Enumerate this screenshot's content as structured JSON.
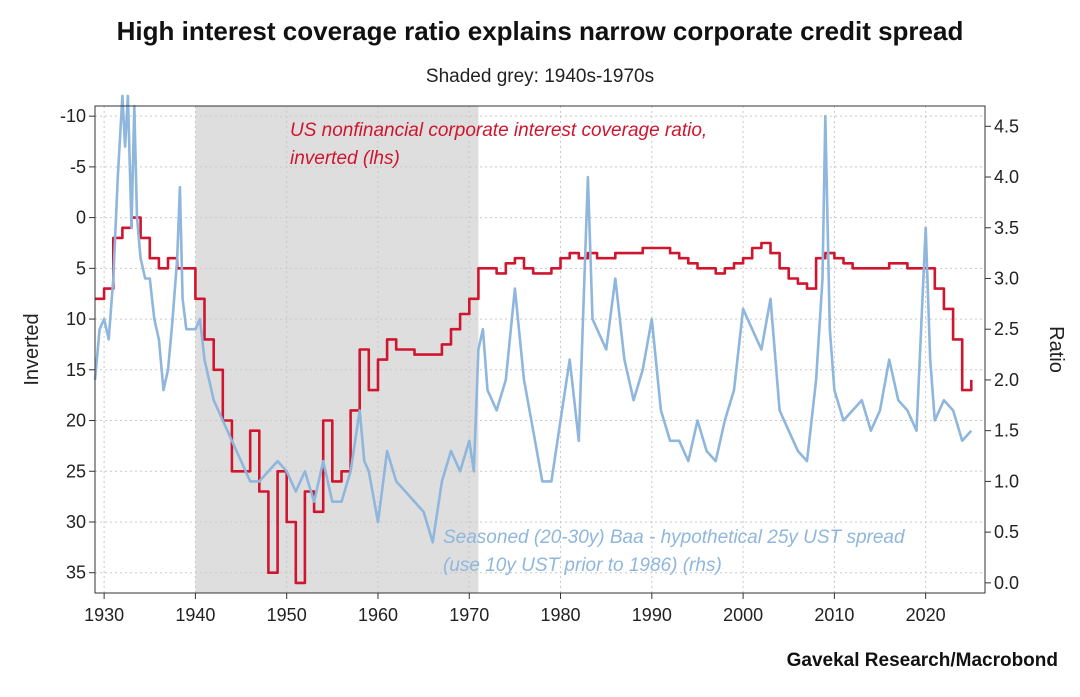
{
  "chart_data": {
    "type": "line",
    "title": "High interest coverage ratio explains narrow corporate credit spread",
    "subtitle": "Shaded grey: 1940s-1970s",
    "source": "Gavekal Research/Macrobond",
    "xlim": [
      1929,
      2026.5
    ],
    "x_ticks": [
      "1930",
      "1940",
      "1950",
      "1960",
      "1970",
      "1980",
      "1990",
      "2000",
      "2010",
      "2020"
    ],
    "shaded_region": [
      1940,
      1971
    ],
    "left_axis": {
      "label": "Inverted",
      "inverted": true,
      "range": [
        -11,
        37
      ],
      "ticks": [
        "-10",
        "-5",
        "0",
        "5",
        "10",
        "15",
        "20",
        "25",
        "30",
        "35"
      ]
    },
    "right_axis": {
      "label": "Ratio",
      "range": [
        -0.1,
        4.7
      ],
      "ticks": [
        "0.0",
        "0.5",
        "1.0",
        "1.5",
        "2.0",
        "2.5",
        "3.0",
        "3.5",
        "4.0",
        "4.5"
      ]
    },
    "grid": true,
    "series": [
      {
        "name": "US nonfinancial corporate interest coverage ratio, inverted (lhs)",
        "label_lines": [
          "US nonfinancial corporate interest coverage ratio,",
          "inverted (lhs)"
        ],
        "axis": "left",
        "color": "#d0152e",
        "step": true,
        "points": [
          [
            1929,
            8
          ],
          [
            1930,
            7
          ],
          [
            1931,
            2
          ],
          [
            1932,
            1
          ],
          [
            1933,
            0
          ],
          [
            1934,
            2
          ],
          [
            1935,
            4
          ],
          [
            1936,
            5
          ],
          [
            1937,
            4
          ],
          [
            1938,
            5
          ],
          [
            1939,
            5
          ],
          [
            1940,
            8
          ],
          [
            1941,
            12
          ],
          [
            1942,
            15
          ],
          [
            1943,
            20
          ],
          [
            1944,
            25
          ],
          [
            1945,
            25
          ],
          [
            1946,
            21
          ],
          [
            1947,
            27
          ],
          [
            1948,
            35
          ],
          [
            1949,
            25
          ],
          [
            1950,
            30
          ],
          [
            1951,
            36
          ],
          [
            1952,
            27
          ],
          [
            1953,
            29
          ],
          [
            1954,
            20
          ],
          [
            1955,
            26
          ],
          [
            1956,
            25
          ],
          [
            1957,
            19
          ],
          [
            1958,
            13
          ],
          [
            1959,
            17
          ],
          [
            1960,
            14
          ],
          [
            1961,
            12
          ],
          [
            1962,
            13
          ],
          [
            1963,
            13
          ],
          [
            1964,
            13.5
          ],
          [
            1965,
            13.5
          ],
          [
            1966,
            13.5
          ],
          [
            1967,
            12.5
          ],
          [
            1968,
            11
          ],
          [
            1969,
            9.5
          ],
          [
            1970,
            8
          ],
          [
            1971,
            5
          ],
          [
            1972,
            5
          ],
          [
            1973,
            5.5
          ],
          [
            1974,
            4.5
          ],
          [
            1975,
            4
          ],
          [
            1976,
            5
          ],
          [
            1977,
            5.5
          ],
          [
            1978,
            5.5
          ],
          [
            1979,
            5
          ],
          [
            1980,
            4
          ],
          [
            1981,
            3.5
          ],
          [
            1982,
            4
          ],
          [
            1983,
            3.5
          ],
          [
            1984,
            4
          ],
          [
            1985,
            4
          ],
          [
            1986,
            3.5
          ],
          [
            1987,
            3.5
          ],
          [
            1988,
            3.5
          ],
          [
            1989,
            3
          ],
          [
            1990,
            3
          ],
          [
            1991,
            3
          ],
          [
            1992,
            3.5
          ],
          [
            1993,
            4
          ],
          [
            1994,
            4.5
          ],
          [
            1995,
            5
          ],
          [
            1996,
            5
          ],
          [
            1997,
            5.5
          ],
          [
            1998,
            5
          ],
          [
            1999,
            4.5
          ],
          [
            2000,
            4
          ],
          [
            2001,
            3
          ],
          [
            2002,
            2.5
          ],
          [
            2003,
            3.5
          ],
          [
            2004,
            5
          ],
          [
            2005,
            6
          ],
          [
            2006,
            6.5
          ],
          [
            2007,
            7
          ],
          [
            2008,
            4
          ],
          [
            2009,
            3.5
          ],
          [
            2010,
            4
          ],
          [
            2011,
            4.5
          ],
          [
            2012,
            5
          ],
          [
            2013,
            5
          ],
          [
            2014,
            5
          ],
          [
            2015,
            5
          ],
          [
            2016,
            4.5
          ],
          [
            2017,
            4.5
          ],
          [
            2018,
            5
          ],
          [
            2019,
            5
          ],
          [
            2020,
            5
          ],
          [
            2021,
            7
          ],
          [
            2022,
            9
          ],
          [
            2023,
            12
          ],
          [
            2024,
            17
          ],
          [
            2025,
            16
          ]
        ]
      },
      {
        "name": "Seasoned (20-30y) Baa - hypothetical 25y UST spread (use 10y UST prior to 1986) (rhs)",
        "label_lines": [
          "Seasoned (20-30y) Baa - hypothetical 25y UST spread",
          "(use 10y UST prior to 1986) (rhs)"
        ],
        "axis": "right",
        "color": "#8fb6dc",
        "step": false,
        "points": [
          [
            1929,
            2.0
          ],
          [
            1929.5,
            2.5
          ],
          [
            1930,
            2.6
          ],
          [
            1930.5,
            2.4
          ],
          [
            1931,
            3.0
          ],
          [
            1931.5,
            4.0
          ],
          [
            1932,
            4.8
          ],
          [
            1932.3,
            4.3
          ],
          [
            1932.6,
            4.8
          ],
          [
            1933,
            3.5
          ],
          [
            1933.3,
            4.7
          ],
          [
            1933.6,
            3.6
          ],
          [
            1934,
            3.2
          ],
          [
            1934.5,
            3.0
          ],
          [
            1935,
            3.0
          ],
          [
            1935.5,
            2.6
          ],
          [
            1936,
            2.4
          ],
          [
            1936.5,
            1.9
          ],
          [
            1937,
            2.1
          ],
          [
            1937.5,
            2.6
          ],
          [
            1938,
            3.2
          ],
          [
            1938.3,
            3.9
          ],
          [
            1938.6,
            2.8
          ],
          [
            1939,
            2.5
          ],
          [
            1940,
            2.5
          ],
          [
            1940.5,
            2.6
          ],
          [
            1941,
            2.2
          ],
          [
            1942,
            1.8
          ],
          [
            1943,
            1.6
          ],
          [
            1944,
            1.4
          ],
          [
            1945,
            1.2
          ],
          [
            1946,
            1.0
          ],
          [
            1947,
            1.0
          ],
          [
            1948,
            1.1
          ],
          [
            1949,
            1.2
          ],
          [
            1950,
            1.1
          ],
          [
            1951,
            0.9
          ],
          [
            1952,
            1.1
          ],
          [
            1953,
            0.8
          ],
          [
            1954,
            1.2
          ],
          [
            1955,
            0.8
          ],
          [
            1956,
            0.8
          ],
          [
            1957,
            1.1
          ],
          [
            1958,
            1.7
          ],
          [
            1958.5,
            1.2
          ],
          [
            1959,
            1.1
          ],
          [
            1960,
            0.6
          ],
          [
            1961,
            1.3
          ],
          [
            1962,
            1.0
          ],
          [
            1963,
            0.9
          ],
          [
            1964,
            0.8
          ],
          [
            1965,
            0.7
          ],
          [
            1966,
            0.4
          ],
          [
            1967,
            1.0
          ],
          [
            1968,
            1.3
          ],
          [
            1969,
            1.1
          ],
          [
            1970,
            1.4
          ],
          [
            1970.5,
            1.1
          ],
          [
            1971,
            2.3
          ],
          [
            1971.5,
            2.5
          ],
          [
            1972,
            1.9
          ],
          [
            1973,
            1.7
          ],
          [
            1974,
            2.0
          ],
          [
            1975,
            2.9
          ],
          [
            1976,
            2.0
          ],
          [
            1977,
            1.5
          ],
          [
            1978,
            1.0
          ],
          [
            1979,
            1.0
          ],
          [
            1980,
            1.6
          ],
          [
            1981,
            2.2
          ],
          [
            1982,
            1.4
          ],
          [
            1983,
            4.0
          ],
          [
            1983.5,
            2.6
          ],
          [
            1984,
            2.5
          ],
          [
            1985,
            2.3
          ],
          [
            1986,
            3.0
          ],
          [
            1987,
            2.2
          ],
          [
            1988,
            1.8
          ],
          [
            1989,
            2.1
          ],
          [
            1990,
            2.6
          ],
          [
            1991,
            1.7
          ],
          [
            1992,
            1.4
          ],
          [
            1993,
            1.4
          ],
          [
            1994,
            1.2
          ],
          [
            1995,
            1.6
          ],
          [
            1996,
            1.3
          ],
          [
            1997,
            1.2
          ],
          [
            1998,
            1.6
          ],
          [
            1999,
            1.9
          ],
          [
            2000,
            2.7
          ],
          [
            2001,
            2.5
          ],
          [
            2002,
            2.3
          ],
          [
            2003,
            2.8
          ],
          [
            2004,
            1.7
          ],
          [
            2005,
            1.5
          ],
          [
            2006,
            1.3
          ],
          [
            2007,
            1.2
          ],
          [
            2008,
            2.0
          ],
          [
            2008.7,
            3.0
          ],
          [
            2009,
            4.6
          ],
          [
            2009.5,
            2.5
          ],
          [
            2010,
            1.9
          ],
          [
            2011,
            1.6
          ],
          [
            2012,
            1.7
          ],
          [
            2013,
            1.8
          ],
          [
            2014,
            1.5
          ],
          [
            2015,
            1.7
          ],
          [
            2016,
            2.2
          ],
          [
            2017,
            1.8
          ],
          [
            2018,
            1.7
          ],
          [
            2019,
            1.5
          ],
          [
            2020,
            3.5
          ],
          [
            2020.5,
            2.2
          ],
          [
            2021,
            1.6
          ],
          [
            2022,
            1.8
          ],
          [
            2023,
            1.7
          ],
          [
            2024,
            1.4
          ],
          [
            2025,
            1.5
          ]
        ]
      }
    ]
  }
}
